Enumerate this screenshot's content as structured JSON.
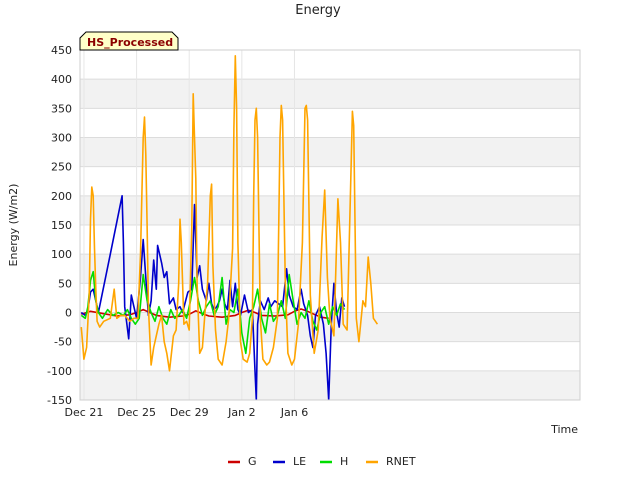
{
  "chart_data": {
    "type": "line",
    "title": "Energy",
    "xlabel": "Time",
    "ylabel": "Energy (W/m2)",
    "badge": "HS_Processed",
    "xlim": [
      -1.3,
      36.7
    ],
    "ylim": [
      -150,
      450
    ],
    "x_ticks": [
      {
        "x": -1,
        "label": "Dec 21"
      },
      {
        "x": 3,
        "label": "Dec 25"
      },
      {
        "x": 7,
        "label": "Dec 29"
      },
      {
        "x": 11,
        "label": "Jan 2"
      },
      {
        "x": 15,
        "label": "Jan 6"
      }
    ],
    "y_ticks": [
      -150,
      -100,
      -50,
      0,
      50,
      100,
      150,
      200,
      250,
      300,
      350,
      400,
      450
    ],
    "grid": true,
    "legend": "bottom-center",
    "series": [
      {
        "name": "G",
        "color": "#cc0000",
        "points": [
          [
            -1.2,
            -3
          ],
          [
            -0.5,
            2
          ],
          [
            0.5,
            -2
          ],
          [
            1.5,
            -6
          ],
          [
            2.5,
            -4
          ],
          [
            3.0,
            0
          ],
          [
            3.5,
            5
          ],
          [
            4.0,
            0
          ],
          [
            4.5,
            -5
          ],
          [
            5.5,
            -8
          ],
          [
            6.5,
            -6
          ],
          [
            7.0,
            -3
          ],
          [
            7.5,
            3
          ],
          [
            8.0,
            -2
          ],
          [
            8.5,
            -6
          ],
          [
            9.5,
            -8
          ],
          [
            10.5,
            -5
          ],
          [
            11.0,
            0
          ],
          [
            11.5,
            4
          ],
          [
            12.0,
            0
          ],
          [
            12.5,
            -5
          ],
          [
            13.5,
            -6
          ],
          [
            14.5,
            -4
          ],
          [
            15.0,
            2
          ],
          [
            15.5,
            6
          ],
          [
            16.0,
            2
          ],
          [
            16.5,
            -3
          ],
          [
            17.0,
            -8
          ],
          [
            17.6,
            -10
          ]
        ]
      },
      {
        "name": "LE",
        "color": "#0000cc",
        "points": [
          [
            -1.2,
            0
          ],
          [
            -0.9,
            -5
          ],
          [
            -0.7,
            5
          ],
          [
            -0.5,
            35
          ],
          [
            -0.3,
            40
          ],
          [
            -0.1,
            20
          ],
          [
            0.1,
            0
          ],
          [
            1.0,
            100
          ],
          [
            1.9,
            200
          ],
          [
            2.0,
            120
          ],
          [
            2.1,
            10
          ],
          [
            2.4,
            -45
          ],
          [
            2.6,
            30
          ],
          [
            2.8,
            10
          ],
          [
            3.0,
            -10
          ],
          [
            3.3,
            60
          ],
          [
            3.5,
            125
          ],
          [
            3.7,
            60
          ],
          [
            3.9,
            -5
          ],
          [
            4.1,
            20
          ],
          [
            4.3,
            90
          ],
          [
            4.5,
            40
          ],
          [
            4.6,
            115
          ],
          [
            4.9,
            85
          ],
          [
            5.1,
            60
          ],
          [
            5.3,
            70
          ],
          [
            5.5,
            15
          ],
          [
            5.8,
            25
          ],
          [
            6.0,
            5
          ],
          [
            6.3,
            10
          ],
          [
            6.5,
            0
          ],
          [
            6.9,
            35
          ],
          [
            7.2,
            40
          ],
          [
            7.4,
            185
          ],
          [
            7.6,
            60
          ],
          [
            7.8,
            80
          ],
          [
            8.0,
            40
          ],
          [
            8.3,
            20
          ],
          [
            8.5,
            50
          ],
          [
            8.7,
            15
          ],
          [
            8.9,
            5
          ],
          [
            9.1,
            10
          ],
          [
            9.3,
            20
          ],
          [
            9.5,
            40
          ],
          [
            9.7,
            15
          ],
          [
            9.9,
            5
          ],
          [
            10.1,
            55
          ],
          [
            10.3,
            10
          ],
          [
            10.5,
            50
          ],
          [
            10.7,
            5
          ],
          [
            10.9,
            -5
          ],
          [
            11.2,
            30
          ],
          [
            11.5,
            0
          ],
          [
            11.8,
            5
          ],
          [
            12.0,
            -100
          ],
          [
            12.1,
            -150
          ],
          [
            12.2,
            -20
          ],
          [
            12.4,
            20
          ],
          [
            12.7,
            5
          ],
          [
            13.0,
            25
          ],
          [
            13.2,
            10
          ],
          [
            13.5,
            20
          ],
          [
            13.8,
            15
          ],
          [
            14.1,
            10
          ],
          [
            14.4,
            75
          ],
          [
            14.6,
            30
          ],
          [
            14.9,
            10
          ],
          [
            15.2,
            5
          ],
          [
            15.5,
            40
          ],
          [
            15.7,
            15
          ],
          [
            16.0,
            -5
          ],
          [
            16.2,
            -40
          ],
          [
            16.4,
            -60
          ],
          [
            16.6,
            -5
          ],
          [
            16.9,
            10
          ],
          [
            17.2,
            -20
          ],
          [
            17.4,
            -70
          ],
          [
            17.6,
            -150
          ],
          [
            17.8,
            -20
          ],
          [
            18.0,
            50
          ],
          [
            18.2,
            0
          ],
          [
            18.4,
            -25
          ],
          [
            18.6,
            25
          ],
          [
            18.8,
            10
          ]
        ]
      },
      {
        "name": "H",
        "color": "#00dd00",
        "points": [
          [
            -1.2,
            -5
          ],
          [
            -0.9,
            -10
          ],
          [
            -0.7,
            10
          ],
          [
            -0.5,
            55
          ],
          [
            -0.3,
            70
          ],
          [
            -0.1,
            20
          ],
          [
            0.1,
            0
          ],
          [
            0.4,
            -10
          ],
          [
            0.8,
            5
          ],
          [
            1.2,
            -5
          ],
          [
            1.6,
            0
          ],
          [
            2.0,
            -5
          ],
          [
            2.3,
            5
          ],
          [
            2.6,
            -10
          ],
          [
            2.9,
            -20
          ],
          [
            3.2,
            -10
          ],
          [
            3.5,
            65
          ],
          [
            3.8,
            20
          ],
          [
            4.1,
            0
          ],
          [
            4.4,
            -15
          ],
          [
            4.7,
            10
          ],
          [
            5.0,
            -10
          ],
          [
            5.3,
            -20
          ],
          [
            5.6,
            5
          ],
          [
            5.9,
            -10
          ],
          [
            6.2,
            -5
          ],
          [
            6.5,
            5
          ],
          [
            6.8,
            -10
          ],
          [
            7.1,
            20
          ],
          [
            7.4,
            60
          ],
          [
            7.7,
            20
          ],
          [
            8.0,
            -5
          ],
          [
            8.3,
            10
          ],
          [
            8.6,
            20
          ],
          [
            8.9,
            -5
          ],
          [
            9.2,
            10
          ],
          [
            9.5,
            60
          ],
          [
            9.8,
            -20
          ],
          [
            10.1,
            5
          ],
          [
            10.4,
            0
          ],
          [
            10.7,
            40
          ],
          [
            11.0,
            -35
          ],
          [
            11.3,
            -70
          ],
          [
            11.6,
            -10
          ],
          [
            11.9,
            10
          ],
          [
            12.2,
            40
          ],
          [
            12.5,
            -10
          ],
          [
            12.8,
            -35
          ],
          [
            13.1,
            15
          ],
          [
            13.4,
            -15
          ],
          [
            13.7,
            -5
          ],
          [
            14.0,
            20
          ],
          [
            14.3,
            -10
          ],
          [
            14.6,
            65
          ],
          [
            14.9,
            20
          ],
          [
            15.2,
            -20
          ],
          [
            15.5,
            0
          ],
          [
            15.8,
            -10
          ],
          [
            16.1,
            20
          ],
          [
            16.4,
            -15
          ],
          [
            16.7,
            -30
          ],
          [
            17.0,
            0
          ],
          [
            17.3,
            10
          ],
          [
            17.6,
            -20
          ],
          [
            17.9,
            10
          ],
          [
            18.2,
            -5
          ],
          [
            18.5,
            15
          ],
          [
            18.8,
            5
          ]
        ]
      },
      {
        "name": "RNET",
        "color": "#ffa500",
        "points": [
          [
            -1.2,
            -25
          ],
          [
            -1.0,
            -80
          ],
          [
            -0.8,
            -60
          ],
          [
            -0.6,
            30
          ],
          [
            -0.5,
            160
          ],
          [
            -0.4,
            215
          ],
          [
            -0.3,
            200
          ],
          [
            -0.2,
            110
          ],
          [
            -0.1,
            40
          ],
          [
            0.0,
            -15
          ],
          [
            0.2,
            -25
          ],
          [
            0.5,
            -15
          ],
          [
            1.0,
            -10
          ],
          [
            1.3,
            40
          ],
          [
            1.5,
            -10
          ],
          [
            1.8,
            -5
          ],
          [
            2.1,
            -5
          ],
          [
            2.5,
            -15
          ],
          [
            2.8,
            -10
          ],
          [
            3.1,
            -10
          ],
          [
            3.3,
            100
          ],
          [
            3.5,
            300
          ],
          [
            3.6,
            335
          ],
          [
            3.7,
            270
          ],
          [
            3.8,
            150
          ],
          [
            3.9,
            10
          ],
          [
            4.1,
            -90
          ],
          [
            4.3,
            -60
          ],
          [
            4.5,
            -40
          ],
          [
            4.7,
            -20
          ],
          [
            4.9,
            -5
          ],
          [
            5.1,
            -50
          ],
          [
            5.3,
            -70
          ],
          [
            5.5,
            -100
          ],
          [
            5.8,
            -40
          ],
          [
            6.0,
            -30
          ],
          [
            6.2,
            50
          ],
          [
            6.3,
            160
          ],
          [
            6.4,
            120
          ],
          [
            6.6,
            -20
          ],
          [
            6.8,
            -15
          ],
          [
            7.0,
            -30
          ],
          [
            7.2,
            150
          ],
          [
            7.3,
            375
          ],
          [
            7.4,
            300
          ],
          [
            7.5,
            230
          ],
          [
            7.6,
            50
          ],
          [
            7.8,
            -70
          ],
          [
            8.0,
            -60
          ],
          [
            8.2,
            0
          ],
          [
            8.4,
            50
          ],
          [
            8.6,
            200
          ],
          [
            8.7,
            220
          ],
          [
            8.8,
            80
          ],
          [
            9.0,
            -30
          ],
          [
            9.2,
            -80
          ],
          [
            9.5,
            -90
          ],
          [
            9.8,
            -50
          ],
          [
            10.0,
            -10
          ],
          [
            10.3,
            110
          ],
          [
            10.4,
            315
          ],
          [
            10.5,
            440
          ],
          [
            10.6,
            350
          ],
          [
            10.7,
            120
          ],
          [
            10.9,
            -50
          ],
          [
            11.1,
            -80
          ],
          [
            11.4,
            -85
          ],
          [
            11.6,
            -70
          ],
          [
            11.8,
            -10
          ],
          [
            11.9,
            200
          ],
          [
            12.0,
            330
          ],
          [
            12.1,
            350
          ],
          [
            12.2,
            300
          ],
          [
            12.4,
            -10
          ],
          [
            12.6,
            -80
          ],
          [
            12.9,
            -90
          ],
          [
            13.1,
            -85
          ],
          [
            13.4,
            -60
          ],
          [
            13.7,
            -10
          ],
          [
            13.9,
            300
          ],
          [
            14.0,
            355
          ],
          [
            14.1,
            330
          ],
          [
            14.3,
            50
          ],
          [
            14.5,
            -70
          ],
          [
            14.8,
            -90
          ],
          [
            15.0,
            -80
          ],
          [
            15.3,
            -20
          ],
          [
            15.6,
            120
          ],
          [
            15.8,
            350
          ],
          [
            15.9,
            355
          ],
          [
            16.0,
            330
          ],
          [
            16.2,
            30
          ],
          [
            16.5,
            -70
          ],
          [
            16.8,
            -30
          ],
          [
            17.1,
            130
          ],
          [
            17.3,
            210
          ],
          [
            17.5,
            60
          ],
          [
            17.7,
            -10
          ],
          [
            18.0,
            -40
          ],
          [
            18.3,
            195
          ],
          [
            18.5,
            120
          ],
          [
            18.7,
            -20
          ],
          [
            19.0,
            -30
          ],
          [
            19.3,
            250
          ],
          [
            19.4,
            345
          ],
          [
            19.5,
            320
          ],
          [
            19.7,
            -10
          ],
          [
            19.9,
            -50
          ],
          [
            20.2,
            20
          ],
          [
            20.4,
            10
          ],
          [
            20.6,
            95
          ],
          [
            20.8,
            50
          ],
          [
            21.0,
            -10
          ],
          [
            21.3,
            -20
          ]
        ]
      }
    ]
  }
}
